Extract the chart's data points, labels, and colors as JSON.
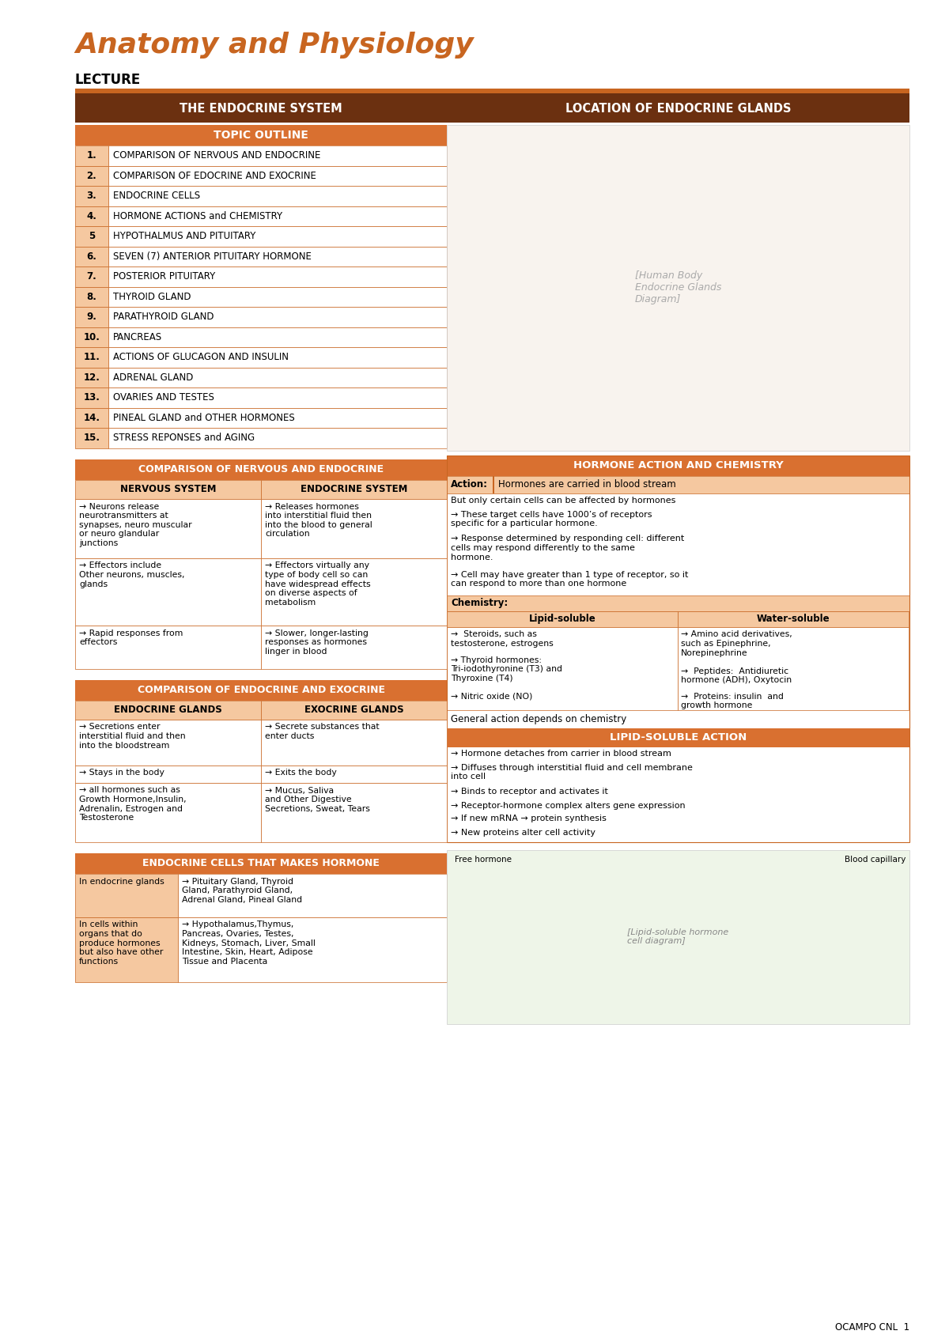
{
  "bg": "#ffffff",
  "od": "#6B3010",
  "om": "#C86520",
  "ol": "#D97030",
  "op": "#F5C8A0",
  "op2": "#FAE0C8",
  "white": "#ffffff",
  "black": "#000000",
  "title_color": "#C86520",
  "title": "Anatomy and Physiology",
  "subtitle": "LECTURE",
  "sec1": "THE ENDOCRINE SYSTEM",
  "sec2": "LOCATION OF ENDOCRINE GLANDS",
  "topic_hdr": "TOPIC OUTLINE",
  "topic_items": [
    [
      "1.",
      "COMPARISON OF NERVOUS AND ENDOCRINE"
    ],
    [
      "2.",
      "COMPARISON OF EDOCRINE AND EXOCRINE"
    ],
    [
      "3.",
      "ENDOCRINE CELLS"
    ],
    [
      "4.",
      "HORMONE ACTIONS and CHEMISTRY"
    ],
    [
      "5",
      "HYPOTHALMUS AND PITUITARY"
    ],
    [
      "6.",
      "SEVEN (7) ANTERIOR PITUITARY HORMONE"
    ],
    [
      "7.",
      "POSTERIOR PITUITARY"
    ],
    [
      "8.",
      "THYROID GLAND"
    ],
    [
      "9.",
      "PARATHYROID GLAND"
    ],
    [
      "10.",
      "PANCREAS"
    ],
    [
      "11.",
      "ACTIONS OF GLUCAGON AND INSULIN"
    ],
    [
      "12.",
      "ADRENAL GLAND"
    ],
    [
      "13.",
      "OVARIES AND TESTES"
    ],
    [
      "14.",
      "PINEAL GLAND and OTHER HORMONES"
    ],
    [
      "15.",
      "STRESS REPONSES and AGING"
    ]
  ],
  "ne_hdr": "COMPARISON OF NERVOUS AND ENDOCRINE",
  "ns_hdr": "NERVOUS SYSTEM",
  "es_hdr": "ENDOCRINE SYSTEM",
  "ne_rows": [
    [
      "→ Neurons release\nneurotransmitters at\nsynapses, neuro muscular\nor neuro glandular\njunctions",
      "→ Releases hormones\ninto interstitial fluid then\ninto the blood to general\ncirculation"
    ],
    [
      "→ Effectors include\nOther neurons, muscles,\nglands",
      "→ Effectors virtually any\ntype of body cell so can\nhave widespread effects\non diverse aspects of\nmetabolism"
    ],
    [
      "→ Rapid responses from\neffectors",
      "→ Slower, longer-lasting\nresponses as hormones\nlinger in blood"
    ]
  ],
  "ee_hdr": "COMPARISON OF ENDOCRINE AND EXOCRINE",
  "eg_hdr": "ENDOCRINE GLANDS",
  "xg_hdr": "EXOCRINE GLANDS",
  "ee_rows": [
    [
      "→ Secretions enter\ninterstitial fluid and then\ninto the bloodstream",
      "→ Secrete substances that\nenter ducts"
    ],
    [
      "→ Stays in the body",
      "→ Exits the body"
    ],
    [
      "→ all hormones such as\nGrowth Hormone,Insulin,\nAdrenalin, Estrogen and\nTestosterone",
      "→ Mucus, Saliva\nand Other Digestive\nSecretions, Sweat, Tears"
    ]
  ],
  "ec_hdr": "ENDOCRINE CELLS THAT MAKES HORMONE",
  "ec_rows": [
    [
      "In endocrine glands",
      "→ Pituitary Gland, Thyroid\nGland, Parathyroid Gland,\nAdrenal Gland, Pineal Gland"
    ],
    [
      "In cells within\norgans that do\nproduce hormones\nbut also have other\nfunctions",
      "→ Hypothalamus,Thymus,\nPancreas, Ovaries, Testes,\nKidneys, Stomach, Liver, Small\nIntestine, Skin, Heart, Adipose\nTissue and Placenta"
    ]
  ],
  "hac_hdr": "HORMONE ACTION AND CHEMISTRY",
  "hac_action_lbl": "Action:",
  "hac_action_val": "Hormones are carried in blood stream",
  "hac_body": [
    "But only certain cells can be affected by hormones",
    "→ These target cells have 1000’s of receptors\nspecific for a particular hormone.",
    "→ Response determined by responding cell: different\ncells may respond differently to the same\nhormone.",
    "→ Cell may have greater than 1 type of receptor, so it\ncan respond to more than one hormone"
  ],
  "chem_lbl": "Chemistry:",
  "lipid_hdr": "Lipid-soluble",
  "water_hdr": "Water-soluble",
  "lipid_items": [
    "→  Steroids, such as\ntestosterone, estrogens",
    "→ Thyroid hormones:\nTri-iodothyronine (T3) and\nThyroxine (T4)",
    "→ Nitric oxide (NO)"
  ],
  "water_items": [
    "→ Amino acid derivatives,\nsuch as Epinephrine,\nNorepinephrine",
    "→  Peptides:  Antidiuretic\nhormone (ADH), Oxytocin",
    "→  Proteins: insulin  and\ngrowth hormone"
  ],
  "gen_action": "General action depends on chemistry",
  "lsa_hdr": "LIPID-SOLUBLE ACTION",
  "lsa_items": [
    "→ Hormone detaches from carrier in blood stream",
    "→ Diffuses through interstitial fluid and cell membrane\ninto cell",
    "→ Binds to receptor and activates it",
    "→ Receptor-hormone complex alters gene expression",
    "→ If new mRNA → protein synthesis",
    "→ New proteins alter cell activity"
  ],
  "footer": "OCAMPO CNL  1"
}
